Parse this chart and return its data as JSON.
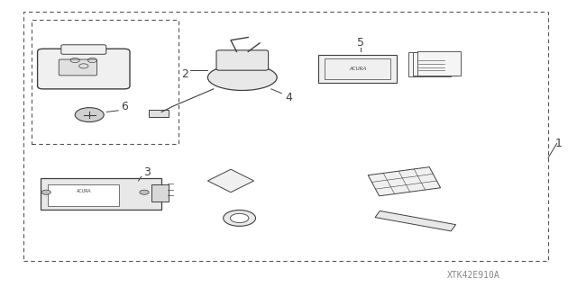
{
  "bg_color": "#ffffff",
  "line_color": "#404040",
  "dashed_color": "#555555",
  "label_1": "1",
  "label_2": "2",
  "label_3": "3",
  "label_4": "4",
  "label_5": "5",
  "label_6": "6",
  "watermark": "XTK42E910A",
  "font_size_label": 9,
  "font_size_watermark": 7
}
